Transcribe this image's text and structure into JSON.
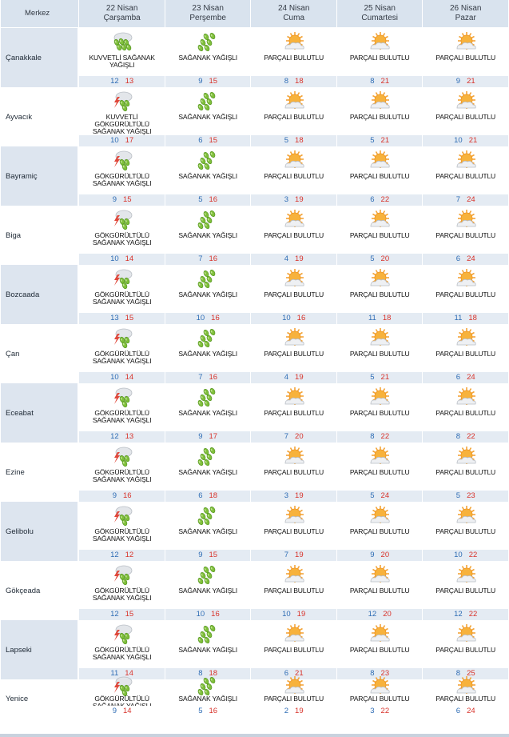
{
  "header": {
    "merkez": "Merkez",
    "days": [
      {
        "date": "22 Nisan",
        "weekday": "Çarşamba"
      },
      {
        "date": "23 Nisan",
        "weekday": "Perşembe"
      },
      {
        "date": "24 Nisan",
        "weekday": "Cuma"
      },
      {
        "date": "25 Nisan",
        "weekday": "Cumartesi"
      },
      {
        "date": "26 Nisan",
        "weekday": "Pazar"
      }
    ]
  },
  "icons": {
    "heavy": "heavy-shower-icon",
    "thunder": "thunder-shower-icon",
    "shower": "shower-icon",
    "partly": "partly-cloudy-icon"
  },
  "colors": {
    "min": "#2f6db5",
    "max": "#d8332b",
    "header": "#d9e3ee"
  },
  "rows": [
    {
      "city": "Çanakkale",
      "days": [
        {
          "icon": "heavy",
          "desc": "KUVVETLİ SAĞANAK YAĞIŞLI",
          "min": "12",
          "max": "13"
        },
        {
          "icon": "shower",
          "desc": "SAĞANAK YAĞIŞLI",
          "min": "9",
          "max": "15"
        },
        {
          "icon": "partly",
          "desc": "PARÇALI BULUTLU",
          "min": "8",
          "max": "18"
        },
        {
          "icon": "partly",
          "desc": "PARÇALI BULUTLU",
          "min": "8",
          "max": "21"
        },
        {
          "icon": "partly",
          "desc": "PARÇALI BULUTLU",
          "min": "9",
          "max": "21"
        }
      ]
    },
    {
      "city": "Ayvacık",
      "days": [
        {
          "icon": "thunder",
          "desc": "KUVVETLİ GÖKGÜRÜLTÜLÜ SAĞANAK YAĞIŞLI",
          "min": "10",
          "max": "17"
        },
        {
          "icon": "shower",
          "desc": "SAĞANAK YAĞIŞLI",
          "min": "6",
          "max": "15"
        },
        {
          "icon": "partly",
          "desc": "PARÇALI BULUTLU",
          "min": "5",
          "max": "18"
        },
        {
          "icon": "partly",
          "desc": "PARÇALI BULUTLU",
          "min": "5",
          "max": "21"
        },
        {
          "icon": "partly",
          "desc": "PARÇALI BULUTLU",
          "min": "10",
          "max": "21"
        }
      ]
    },
    {
      "city": "Bayramiç",
      "days": [
        {
          "icon": "thunder",
          "desc": "GÖKGÜRÜLTÜLÜ SAĞANAK YAĞIŞLI",
          "min": "9",
          "max": "15"
        },
        {
          "icon": "shower",
          "desc": "SAĞANAK YAĞIŞLI",
          "min": "5",
          "max": "16"
        },
        {
          "icon": "partly",
          "desc": "PARÇALI BULUTLU",
          "min": "3",
          "max": "19"
        },
        {
          "icon": "partly",
          "desc": "PARÇALI BULUTLU",
          "min": "6",
          "max": "22"
        },
        {
          "icon": "partly",
          "desc": "PARÇALI BULUTLU",
          "min": "7",
          "max": "24"
        }
      ]
    },
    {
      "city": "Biga",
      "days": [
        {
          "icon": "thunder",
          "desc": "GÖKGÜRÜLTÜLÜ SAĞANAK YAĞIŞLI",
          "min": "10",
          "max": "14"
        },
        {
          "icon": "shower",
          "desc": "SAĞANAK YAĞIŞLI",
          "min": "7",
          "max": "16"
        },
        {
          "icon": "partly",
          "desc": "PARÇALI BULUTLU",
          "min": "4",
          "max": "19"
        },
        {
          "icon": "partly",
          "desc": "PARÇALI BULUTLU",
          "min": "5",
          "max": "20"
        },
        {
          "icon": "partly",
          "desc": "PARÇALI BULUTLU",
          "min": "6",
          "max": "24"
        }
      ]
    },
    {
      "city": "Bozcaada",
      "days": [
        {
          "icon": "thunder",
          "desc": "GÖKGÜRÜLTÜLÜ SAĞANAK YAĞIŞLI",
          "min": "13",
          "max": "15"
        },
        {
          "icon": "shower",
          "desc": "SAĞANAK YAĞIŞLI",
          "min": "10",
          "max": "16"
        },
        {
          "icon": "partly",
          "desc": "PARÇALI BULUTLU",
          "min": "10",
          "max": "16"
        },
        {
          "icon": "partly",
          "desc": "PARÇALI BULUTLU",
          "min": "11",
          "max": "18"
        },
        {
          "icon": "partly",
          "desc": "PARÇALI BULUTLU",
          "min": "11",
          "max": "18"
        }
      ]
    },
    {
      "city": "Çan",
      "days": [
        {
          "icon": "thunder",
          "desc": "GÖKGÜRÜLTÜLÜ SAĞANAK YAĞIŞLI",
          "min": "10",
          "max": "14"
        },
        {
          "icon": "shower",
          "desc": "SAĞANAK YAĞIŞLI",
          "min": "7",
          "max": "16"
        },
        {
          "icon": "partly",
          "desc": "PARÇALI BULUTLU",
          "min": "4",
          "max": "19"
        },
        {
          "icon": "partly",
          "desc": "PARÇALI BULUTLU",
          "min": "5",
          "max": "21"
        },
        {
          "icon": "partly",
          "desc": "PARÇALI BULUTLU",
          "min": "6",
          "max": "24"
        }
      ]
    },
    {
      "city": "Eceabat",
      "days": [
        {
          "icon": "thunder",
          "desc": "GÖKGÜRÜLTÜLÜ SAĞANAK YAĞIŞLI",
          "min": "12",
          "max": "13"
        },
        {
          "icon": "shower",
          "desc": "SAĞANAK YAĞIŞLI",
          "min": "9",
          "max": "17"
        },
        {
          "icon": "partly",
          "desc": "PARÇALI BULUTLU",
          "min": "7",
          "max": "20"
        },
        {
          "icon": "partly",
          "desc": "PARÇALI BULUTLU",
          "min": "8",
          "max": "22"
        },
        {
          "icon": "partly",
          "desc": "PARÇALI BULUTLU",
          "min": "8",
          "max": "22"
        }
      ]
    },
    {
      "city": "Ezine",
      "days": [
        {
          "icon": "thunder",
          "desc": "GÖKGÜRÜLTÜLÜ SAĞANAK YAĞIŞLI",
          "min": "9",
          "max": "16"
        },
        {
          "icon": "shower",
          "desc": "SAĞANAK YAĞIŞLI",
          "min": "6",
          "max": "18"
        },
        {
          "icon": "partly",
          "desc": "PARÇALI BULUTLU",
          "min": "3",
          "max": "19"
        },
        {
          "icon": "partly",
          "desc": "PARÇALI BULUTLU",
          "min": "5",
          "max": "24"
        },
        {
          "icon": "partly",
          "desc": "PARÇALI BULUTLU",
          "min": "5",
          "max": "23"
        }
      ]
    },
    {
      "city": "Gelibolu",
      "days": [
        {
          "icon": "thunder",
          "desc": "GÖKGÜRÜLTÜLÜ SAĞANAK YAĞIŞLI",
          "min": "12",
          "max": "12"
        },
        {
          "icon": "shower",
          "desc": "SAĞANAK YAĞIŞLI",
          "min": "9",
          "max": "15"
        },
        {
          "icon": "partly",
          "desc": "PARÇALI BULUTLU",
          "min": "7",
          "max": "19"
        },
        {
          "icon": "partly",
          "desc": "PARÇALI BULUTLU",
          "min": "9",
          "max": "20"
        },
        {
          "icon": "partly",
          "desc": "PARÇALI BULUTLU",
          "min": "10",
          "max": "22"
        }
      ]
    },
    {
      "city": "Gökçeada",
      "days": [
        {
          "icon": "thunder",
          "desc": "GÖKGÜRÜLTÜLÜ SAĞANAK YAĞIŞLI",
          "min": "12",
          "max": "15"
        },
        {
          "icon": "shower",
          "desc": "SAĞANAK YAĞIŞLI",
          "min": "10",
          "max": "16"
        },
        {
          "icon": "partly",
          "desc": "PARÇALI BULUTLU",
          "min": "10",
          "max": "19"
        },
        {
          "icon": "partly",
          "desc": "PARÇALI BULUTLU",
          "min": "12",
          "max": "20"
        },
        {
          "icon": "partly",
          "desc": "PARÇALI BULUTLU",
          "min": "12",
          "max": "22"
        }
      ]
    },
    {
      "city": "Lapseki",
      "days": [
        {
          "icon": "thunder",
          "desc": "GÖKGÜRÜLTÜLÜ SAĞANAK YAĞIŞLI",
          "min": "11",
          "max": "14"
        },
        {
          "icon": "shower",
          "desc": "SAĞANAK YAĞIŞLI",
          "min": "8",
          "max": "18"
        },
        {
          "icon": "partly",
          "desc": "PARÇALI BULUTLU",
          "min": "6",
          "max": "21"
        },
        {
          "icon": "partly",
          "desc": "PARÇALI BULUTLU",
          "min": "8",
          "max": "23"
        },
        {
          "icon": "partly",
          "desc": "PARÇALI BULUTLU",
          "min": "8",
          "max": "25"
        }
      ]
    },
    {
      "city": "Yenice",
      "days": [
        {
          "icon": "thunder",
          "desc": "GÖKGÜRÜLTÜLÜ SAĞANAK YAĞIŞLI",
          "min": "9",
          "max": "14"
        },
        {
          "icon": "shower",
          "desc": "SAĞANAK YAĞIŞLI",
          "min": "5",
          "max": "16"
        },
        {
          "icon": "partly",
          "desc": "PARÇALI BULUTLU",
          "min": "2",
          "max": "19"
        },
        {
          "icon": "partly",
          "desc": "PARÇALI BULUTLU",
          "min": "3",
          "max": "22"
        },
        {
          "icon": "partly",
          "desc": "PARÇALI BULUTLU",
          "min": "6",
          "max": "24"
        }
      ]
    }
  ]
}
